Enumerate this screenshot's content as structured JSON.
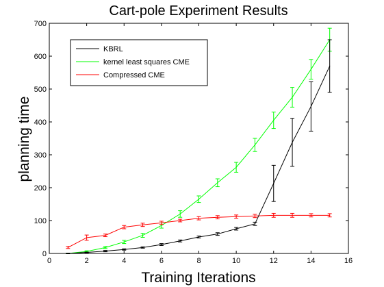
{
  "chart_data": {
    "type": "line",
    "title": "Cart-pole Experiment Results",
    "xlabel": "Training Iterations",
    "ylabel": "planning time",
    "xlim": [
      0,
      16
    ],
    "ylim": [
      0,
      700
    ],
    "xticks": [
      0,
      2,
      4,
      6,
      8,
      10,
      12,
      14,
      16
    ],
    "yticks": [
      0,
      100,
      200,
      300,
      400,
      500,
      600,
      700
    ],
    "grid": false,
    "legend_position": "top-left",
    "series": [
      {
        "name": "KBRL",
        "color": "#000000",
        "x": [
          1,
          2,
          3,
          4,
          5,
          6,
          7,
          8,
          9,
          10,
          11,
          12,
          13,
          14,
          15
        ],
        "y": [
          0,
          3,
          7,
          12,
          18,
          27,
          38,
          50,
          59,
          75,
          90,
          213,
          338,
          447,
          570
        ],
        "err": [
          1,
          1,
          2,
          2,
          2,
          3,
          3,
          3,
          4,
          4,
          5,
          55,
          73,
          75,
          80
        ]
      },
      {
        "name": "kernel least squares CME",
        "color": "#00ff00",
        "x": [
          1,
          2,
          3,
          4,
          5,
          6,
          7,
          8,
          9,
          10,
          11,
          12,
          13,
          14,
          15
        ],
        "y": [
          0,
          6,
          18,
          35,
          55,
          85,
          120,
          165,
          215,
          262,
          330,
          405,
          475,
          560,
          650
        ],
        "err": [
          1,
          2,
          3,
          5,
          6,
          8,
          10,
          10,
          12,
          15,
          20,
          25,
          30,
          30,
          35
        ]
      },
      {
        "name": "Compressed CME",
        "color": "#ff0000",
        "x": [
          1,
          2,
          3,
          4,
          5,
          6,
          7,
          8,
          9,
          10,
          11,
          12,
          13,
          14,
          15
        ],
        "y": [
          18,
          48,
          55,
          80,
          87,
          93,
          100,
          107,
          110,
          112,
          114,
          116,
          116,
          116,
          116
        ],
        "err": [
          3,
          8,
          4,
          5,
          5,
          5,
          4,
          5,
          5,
          5,
          5,
          6,
          6,
          5,
          5
        ]
      }
    ]
  }
}
